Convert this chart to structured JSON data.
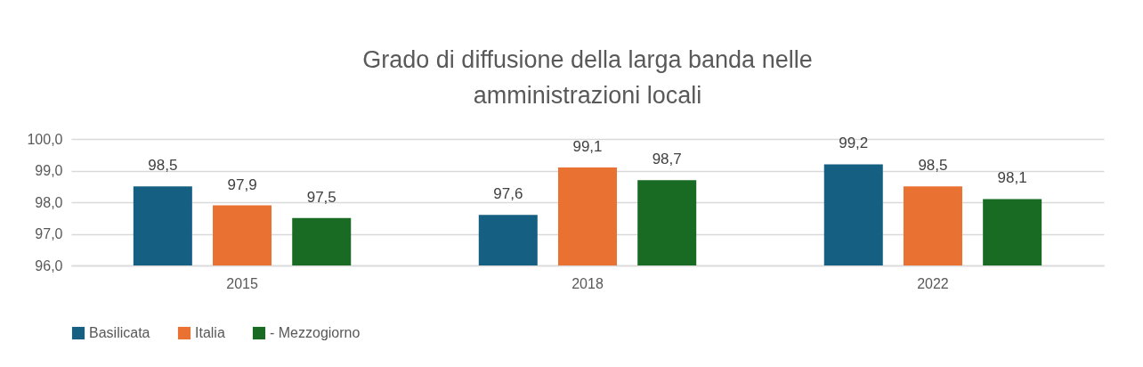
{
  "chart_data": {
    "type": "bar",
    "title": "Grado di diffusione della larga banda nelle amministrazioni locali",
    "categories": [
      "2015",
      "2018",
      "2022"
    ],
    "series": [
      {
        "name": "Basilicata",
        "color": "#156082",
        "values": [
          98.5,
          97.6,
          99.2
        ],
        "value_labels": [
          "98,5",
          "97,6",
          "99,2"
        ]
      },
      {
        "name": "Italia",
        "color": "#e97132",
        "values": [
          97.9,
          99.1,
          98.5
        ],
        "value_labels": [
          "97,9",
          "99,1",
          "98,5"
        ]
      },
      {
        "name": "- Mezzogiorno",
        "color": "#196b24",
        "values": [
          97.5,
          98.7,
          98.1
        ],
        "value_labels": [
          "97,5",
          "98,7",
          "98,1"
        ]
      }
    ],
    "ylim": [
      96,
      100
    ],
    "yticks": [
      {
        "value": 96,
        "label": "96,0"
      },
      {
        "value": 97,
        "label": "97,0"
      },
      {
        "value": 98,
        "label": "98,0"
      },
      {
        "value": 99,
        "label": "99,0"
      },
      {
        "value": 100,
        "label": "100,0"
      }
    ],
    "grid": "y",
    "legend": "bottom"
  }
}
